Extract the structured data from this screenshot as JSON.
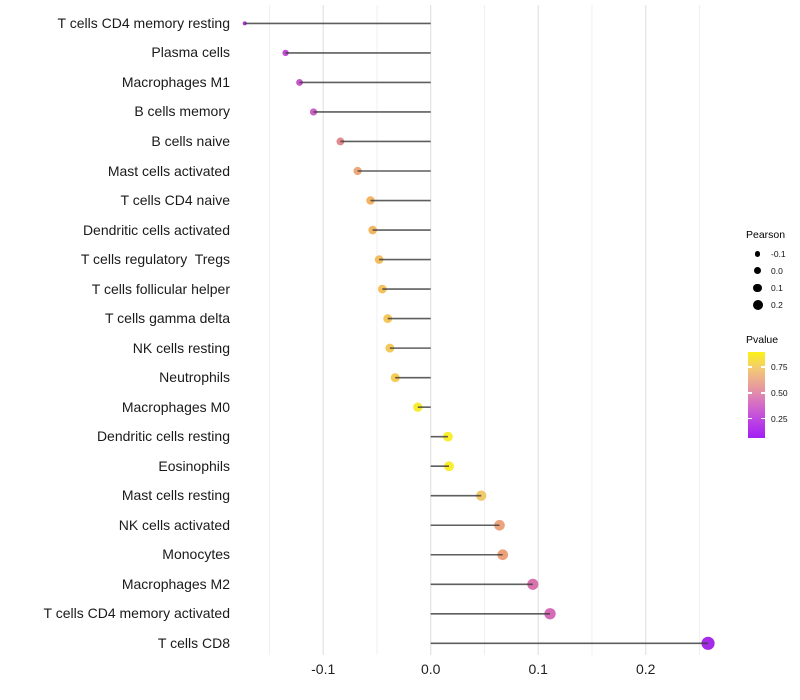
{
  "chart_data": {
    "type": "scatter",
    "subtype": "lollipop",
    "title": "",
    "xlabel": "",
    "ylabel": "",
    "x_ticks": [
      -0.1,
      0.0,
      0.1,
      0.2
    ],
    "x_tick_labels": [
      "-0.1",
      "0.0",
      "0.1",
      "0.2"
    ],
    "xlim": [
      -0.18,
      0.272
    ],
    "gridline_values": [
      -0.15,
      -0.1,
      -0.05,
      0.0,
      0.05,
      0.1,
      0.15,
      0.2,
      0.25
    ],
    "grid_on": true,
    "points": [
      {
        "label": "T cells CD4 memory resting",
        "pearson": -0.173,
        "pvalue": 0.15,
        "color": "#AC38DB"
      },
      {
        "label": "Plasma cells",
        "pearson": -0.135,
        "pvalue": 0.22,
        "color": "#C24FD3"
      },
      {
        "label": "Macrophages M1",
        "pearson": -0.122,
        "pvalue": 0.25,
        "color": "#C757CB"
      },
      {
        "label": "B cells memory",
        "pearson": -0.109,
        "pvalue": 0.29,
        "color": "#CC63C2"
      },
      {
        "label": "B cells naive",
        "pearson": -0.084,
        "pvalue": 0.44,
        "color": "#E08B90"
      },
      {
        "label": "Mast cells activated",
        "pearson": -0.068,
        "pvalue": 0.54,
        "color": "#EDA678"
      },
      {
        "label": "T cells CD4 naive",
        "pearson": -0.056,
        "pvalue": 0.61,
        "color": "#F2B464"
      },
      {
        "label": "Dendritic cells activated",
        "pearson": -0.054,
        "pvalue": 0.61,
        "color": "#F2B563"
      },
      {
        "label": "T cells regulatory  Tregs",
        "pearson": -0.048,
        "pvalue": 0.64,
        "color": "#F3BD60"
      },
      {
        "label": "T cells follicular helper",
        "pearson": -0.045,
        "pvalue": 0.66,
        "color": "#F3C15E"
      },
      {
        "label": "T cells gamma delta",
        "pearson": -0.04,
        "pvalue": 0.68,
        "color": "#F4C65B"
      },
      {
        "label": "NK cells resting",
        "pearson": -0.038,
        "pvalue": 0.69,
        "color": "#F4C85A"
      },
      {
        "label": "Neutrophils",
        "pearson": -0.033,
        "pvalue": 0.71,
        "color": "#F5CD55"
      },
      {
        "label": "Macrophages M0",
        "pearson": -0.012,
        "pvalue": 0.87,
        "color": "#F8EC33"
      },
      {
        "label": "Dendritic cells resting",
        "pearson": 0.016,
        "pvalue": 0.88,
        "color": "#F9EE30"
      },
      {
        "label": "Eosinophils",
        "pearson": 0.017,
        "pvalue": 0.88,
        "color": "#F9EE30"
      },
      {
        "label": "Mast cells resting",
        "pearson": 0.047,
        "pvalue": 0.68,
        "color": "#F0C96E"
      },
      {
        "label": "NK cells activated",
        "pearson": 0.064,
        "pvalue": 0.53,
        "color": "#ECA47E"
      },
      {
        "label": "Monocytes",
        "pearson": 0.067,
        "pvalue": 0.52,
        "color": "#ECA17B"
      },
      {
        "label": "Macrophages M2",
        "pearson": 0.095,
        "pvalue": 0.36,
        "color": "#D873AE"
      },
      {
        "label": "T cells CD4 memory activated",
        "pearson": 0.111,
        "pvalue": 0.32,
        "color": "#D56CB7"
      },
      {
        "label": "T cells CD8",
        "pearson": 0.258,
        "pvalue": 0.07,
        "color": "#A62BE8"
      }
    ],
    "legend_size": {
      "title": "Pearson",
      "entries": [
        {
          "label": "-0.1",
          "value": -0.1
        },
        {
          "label": "0.0",
          "value": 0.0
        },
        {
          "label": "0.1",
          "value": 0.1
        },
        {
          "label": "0.2",
          "value": 0.2
        }
      ]
    },
    "legend_color": {
      "title": "Pvalue",
      "ticks": [
        {
          "label": "0.75",
          "value": 0.75
        },
        {
          "label": "0.50",
          "value": 0.5
        },
        {
          "label": "0.25",
          "value": 0.25
        }
      ],
      "range": [
        0.062,
        0.895
      ],
      "gradient_top_to_bottom": [
        "#FBF116",
        "#F3C878",
        "#E89C9B",
        "#D66FC5",
        "#BC43E3",
        "#A21FF4"
      ],
      "legend_position": "right"
    },
    "colors": {
      "stem": "#3A3A3A",
      "grid_major": "#E3E3E3",
      "grid_minor": "#F0F0F0",
      "background": "#FFFFFF"
    }
  }
}
